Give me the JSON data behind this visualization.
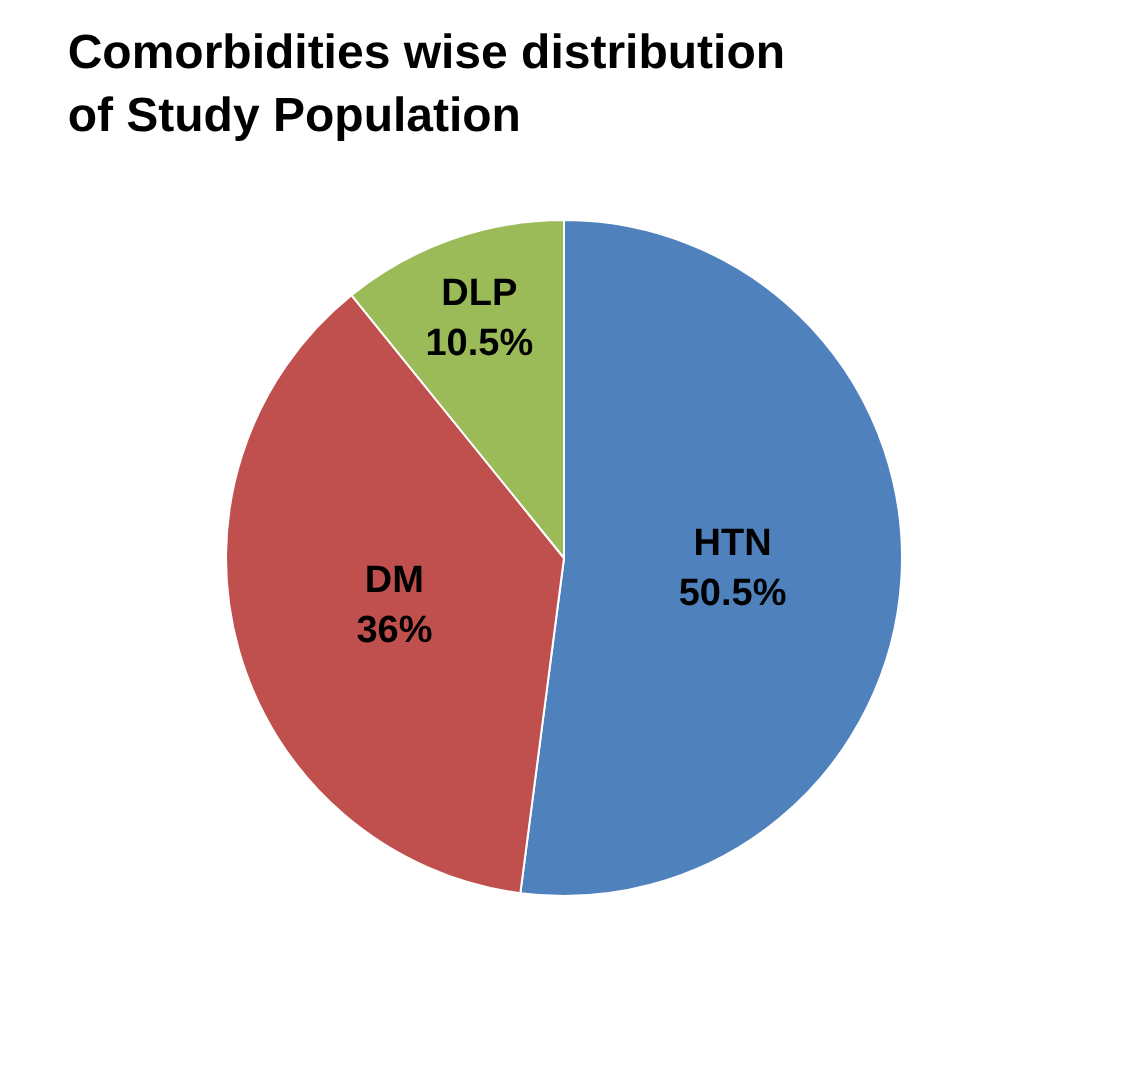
{
  "chart_data": {
    "type": "pie",
    "title": "Comorbidities wise distribution\nof Study Population",
    "categories": [
      "HTN",
      "DM",
      "DLP"
    ],
    "values": [
      50.5,
      36,
      10.5
    ],
    "value_labels": [
      "50.5%",
      "36%",
      "10.5%"
    ],
    "colors": [
      "#4f81bd",
      "#c0504d",
      "#9bbb59"
    ],
    "legend": false
  }
}
